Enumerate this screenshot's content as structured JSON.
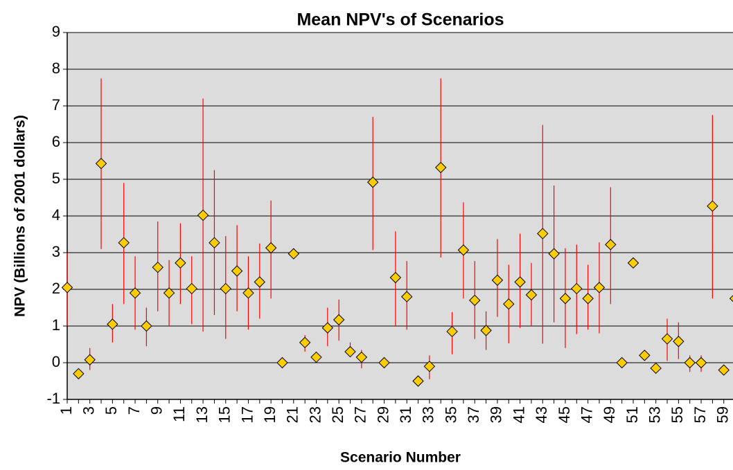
{
  "chart_data": {
    "type": "scatter",
    "title": "Mean NPV's of Scenarios",
    "x_label": "Scenario Number",
    "y_label": "NPV (Billions of 2001 dollars)",
    "categories": [
      "1",
      null,
      "3",
      null,
      "5",
      null,
      "7",
      null,
      "9",
      null,
      "11",
      null,
      "13",
      null,
      "15",
      null,
      "17",
      null,
      "19",
      null,
      "21",
      null,
      "23",
      null,
      "25",
      null,
      "27",
      null,
      "29",
      null,
      "31",
      null,
      "33",
      null,
      "35",
      null,
      "37",
      null,
      "39",
      null,
      "41",
      null,
      "43",
      null,
      "45",
      null,
      "47",
      null,
      "49",
      null,
      "51",
      null,
      "53",
      null,
      "55",
      null,
      "57",
      null,
      "59",
      null
    ],
    "series": [
      {
        "color": "#ffcc00",
        "error_color": "#ff0000",
        "values": [
          2.05,
          -0.3,
          0.08,
          5.43,
          1.05,
          3.27,
          1.9,
          1.0,
          2.6,
          1.9,
          2.72,
          2.02,
          4.02,
          3.27,
          2.02,
          2.5,
          1.9,
          2.2,
          3.13,
          0,
          2.97,
          0.55,
          0.15,
          0.95,
          1.17,
          0.3,
          0.15,
          4.92,
          0,
          2.32,
          1.8,
          -0.5,
          -0.1,
          5.32,
          0.85,
          3.07,
          1.7,
          0.88,
          2.25,
          1.6,
          2.2,
          1.85,
          3.52,
          2.97,
          1.75,
          2.02,
          1.75,
          2.05,
          3.22,
          0,
          2.72,
          0.2,
          -0.15,
          0.65,
          0.58,
          0,
          0,
          4.27,
          -0.2,
          1.75
        ],
        "low": [
          1.0,
          null,
          -0.2,
          3.1,
          0.55,
          1.6,
          0.9,
          0.45,
          1.4,
          1.0,
          1.6,
          1.05,
          0.85,
          1.3,
          0.65,
          1.4,
          0.9,
          1.2,
          1.75,
          null,
          null,
          0.3,
          null,
          0.45,
          0.6,
          0.15,
          -0.15,
          3.07,
          null,
          1.0,
          0.9,
          null,
          -0.45,
          2.87,
          0.23,
          1.75,
          0.65,
          0.35,
          1.25,
          0.53,
          0.95,
          1.0,
          0.52,
          1.1,
          0.4,
          0.78,
          0.9,
          0.8,
          1.6,
          null,
          null,
          0.08,
          null,
          0.05,
          0.1,
          -0.25,
          -0.25,
          1.75,
          null,
          null
        ],
        "high": [
          3.0,
          null,
          0.4,
          7.75,
          1.6,
          4.9,
          2.9,
          1.5,
          3.85,
          2.8,
          3.8,
          2.9,
          7.2,
          5.25,
          3.45,
          3.75,
          2.9,
          3.25,
          4.42,
          null,
          null,
          0.75,
          null,
          1.5,
          1.72,
          0.55,
          0.35,
          6.7,
          null,
          3.58,
          2.77,
          null,
          0.2,
          7.75,
          1.38,
          4.37,
          2.77,
          1.4,
          3.37,
          2.67,
          3.52,
          2.72,
          6.48,
          4.83,
          3.12,
          3.22,
          2.67,
          3.28,
          4.78,
          null,
          null,
          0.3,
          null,
          1.2,
          1.1,
          0.2,
          0.2,
          6.75,
          null,
          null
        ]
      }
    ],
    "ylim": [
      -1,
      9
    ],
    "yticks": [
      -1,
      0,
      1,
      2,
      3,
      4,
      5,
      6,
      7,
      8,
      9
    ],
    "grid": true,
    "plot_background": "#dcdcdc"
  }
}
